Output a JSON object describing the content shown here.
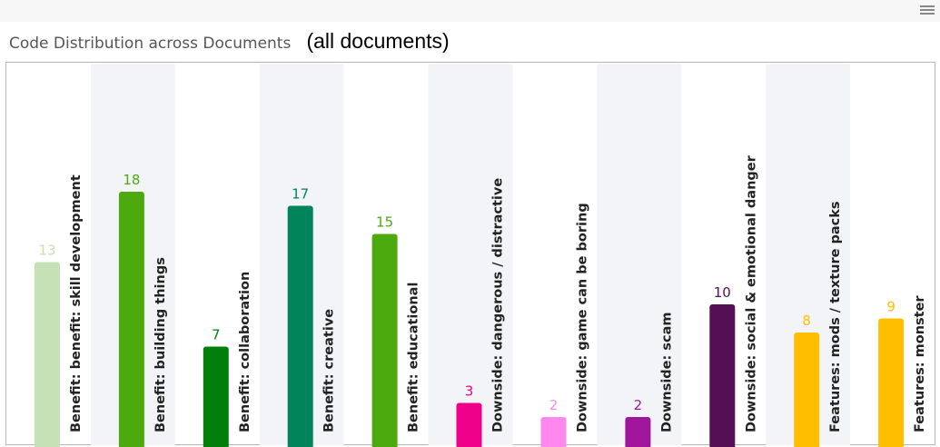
{
  "header": {
    "title": "Code Distribution across Documents",
    "subtitle": "(all documents)",
    "menu_icon": "hamburger-menu-icon"
  },
  "chart_data": {
    "type": "bar",
    "title": "Code Distribution across Documents",
    "subtitle": "(all documents)",
    "categories": [
      "Benefit: benefit: skill development",
      "Benefit: building things",
      "Benefit: collaboration",
      "Benefit: creative",
      "Benefit: educational",
      "Downside: dangerous / distractive",
      "Downside: game can be boring",
      "Downside: scam",
      "Downside: social & emotional danger",
      "Features: mods / texture packs",
      "Features: monster"
    ],
    "values": [
      13,
      18,
      7,
      17,
      15,
      3,
      2,
      2,
      10,
      8,
      9
    ],
    "colors": [
      "#c5e1b5",
      "#4caa0f",
      "#00800a",
      "#00845a",
      "#4caa0f",
      "#ee0088",
      "#ff88ee",
      "#a0169a",
      "#550f55",
      "#ffbf00",
      "#ffbf00"
    ],
    "ylim": [
      0,
      18
    ],
    "grid": false,
    "legend": "none"
  }
}
